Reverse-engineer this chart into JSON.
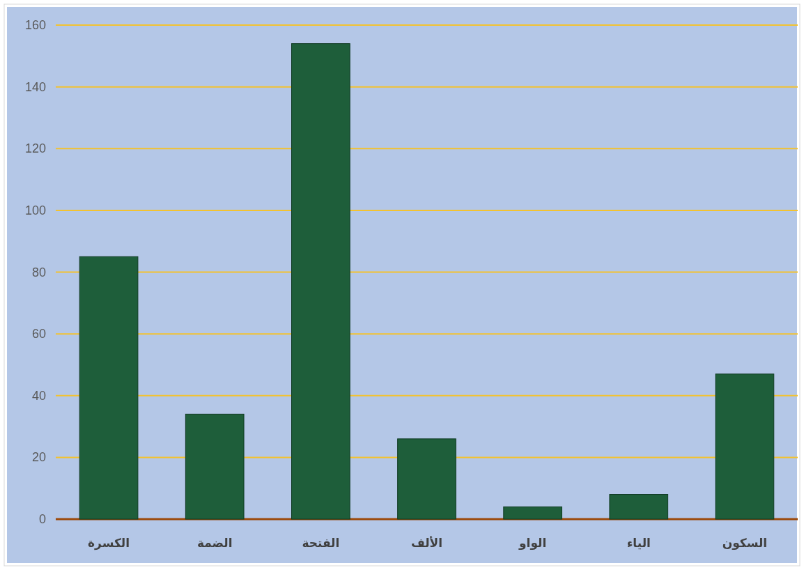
{
  "chart_data": {
    "type": "bar",
    "categories": [
      "الكسرة",
      "الضمة",
      "الفتحة",
      "الألف",
      "الواو",
      "الياء",
      "السكون"
    ],
    "values": [
      85,
      34,
      154,
      26,
      4,
      8,
      47
    ],
    "color": "#1e5e3a",
    "ylim": [
      0,
      160
    ],
    "yticks": [
      0,
      20,
      40,
      60,
      80,
      100,
      120,
      140,
      160
    ],
    "grid": "y"
  }
}
